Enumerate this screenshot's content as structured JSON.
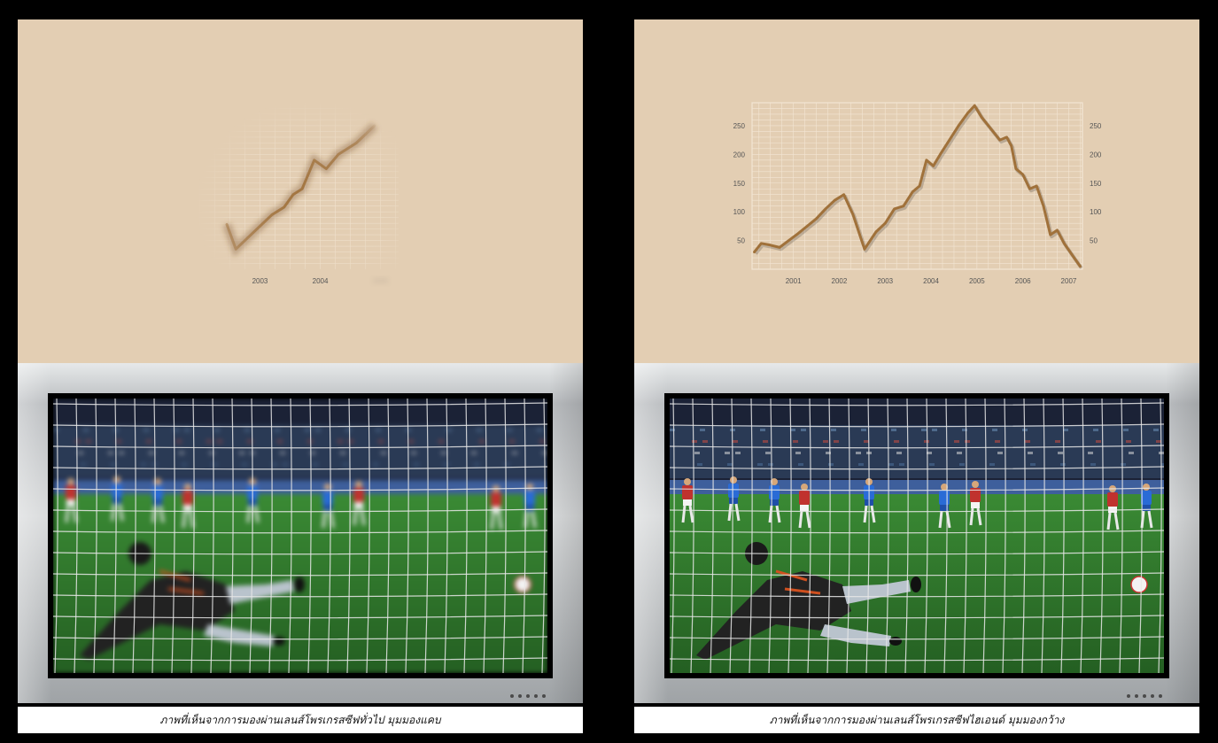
{
  "panels": [
    {
      "id": "left",
      "caption": "ภาพที่เห็นจากการมองผ่านเลนส์โพรเกรสซีฟทั่วไป มุมมองแคบ",
      "x_tick_labels": [
        "2003",
        "2004",
        "2005"
      ]
    },
    {
      "id": "right",
      "caption": "ภาพที่เห็นจากการมองผ่านเลนส์โพรเกรสซีฟไฮเอนด์ มุมมองกว้าง",
      "x_tick_labels": [
        "2001",
        "2002",
        "2003",
        "2004",
        "2005",
        "2006",
        "2007"
      ]
    }
  ],
  "chart_data": [
    {
      "type": "line",
      "panel": "left",
      "title": "",
      "xlabel": "",
      "ylabel": "",
      "x_visible_range": [
        2002.4,
        2005.0
      ],
      "note_visible": "only a narrow central region is sharp; periphery blurred",
      "x": [
        2002.45,
        2002.6,
        2002.8,
        2003.0,
        2003.2,
        2003.4,
        2003.55,
        2003.7,
        2003.8,
        2003.9,
        2004.1,
        2004.3,
        2004.6,
        2004.9
      ],
      "values": [
        78,
        35,
        55,
        75,
        95,
        108,
        130,
        140,
        165,
        190,
        175,
        200,
        220,
        250
      ],
      "grid": true,
      "line_color": "#a0713a"
    },
    {
      "type": "line",
      "panel": "right",
      "title": "",
      "xlabel": "",
      "ylabel": "",
      "xlim": [
        2000.1,
        2007.3
      ],
      "ylim": [
        0,
        290
      ],
      "y_ticks": [
        50,
        100,
        150,
        200,
        250
      ],
      "x_ticks": [
        2001,
        2002,
        2003,
        2004,
        2005,
        2006,
        2007
      ],
      "x": [
        2000.15,
        2000.3,
        2000.5,
        2000.7,
        2000.9,
        2001.1,
        2001.3,
        2001.5,
        2001.7,
        2001.9,
        2002.1,
        2002.3,
        2002.55,
        2002.8,
        2003.0,
        2003.2,
        2003.4,
        2003.6,
        2003.75,
        2003.9,
        2004.05,
        2004.2,
        2004.4,
        2004.6,
        2004.8,
        2004.95,
        2005.1,
        2005.3,
        2005.5,
        2005.65,
        2005.75,
        2005.85,
        2006.0,
        2006.15,
        2006.3,
        2006.45,
        2006.6,
        2006.75,
        2006.9,
        2007.1,
        2007.25
      ],
      "values": [
        30,
        45,
        42,
        38,
        50,
        62,
        75,
        88,
        105,
        120,
        130,
        95,
        35,
        65,
        80,
        105,
        110,
        135,
        145,
        190,
        180,
        200,
        225,
        250,
        272,
        285,
        265,
        245,
        225,
        230,
        215,
        175,
        165,
        140,
        145,
        110,
        60,
        68,
        45,
        22,
        5
      ],
      "grid": true,
      "line_color": "#a0713a"
    }
  ],
  "scene": {
    "description_colors": {
      "pitch": "#2f7d2a",
      "stands": "#2a3a55",
      "net": "#e8e8e8",
      "keeper_kit": "#222222",
      "blue_team": "#2a6bd6",
      "red_team": "#c0322e"
    }
  },
  "tv": {
    "indicator_dots": 5
  }
}
